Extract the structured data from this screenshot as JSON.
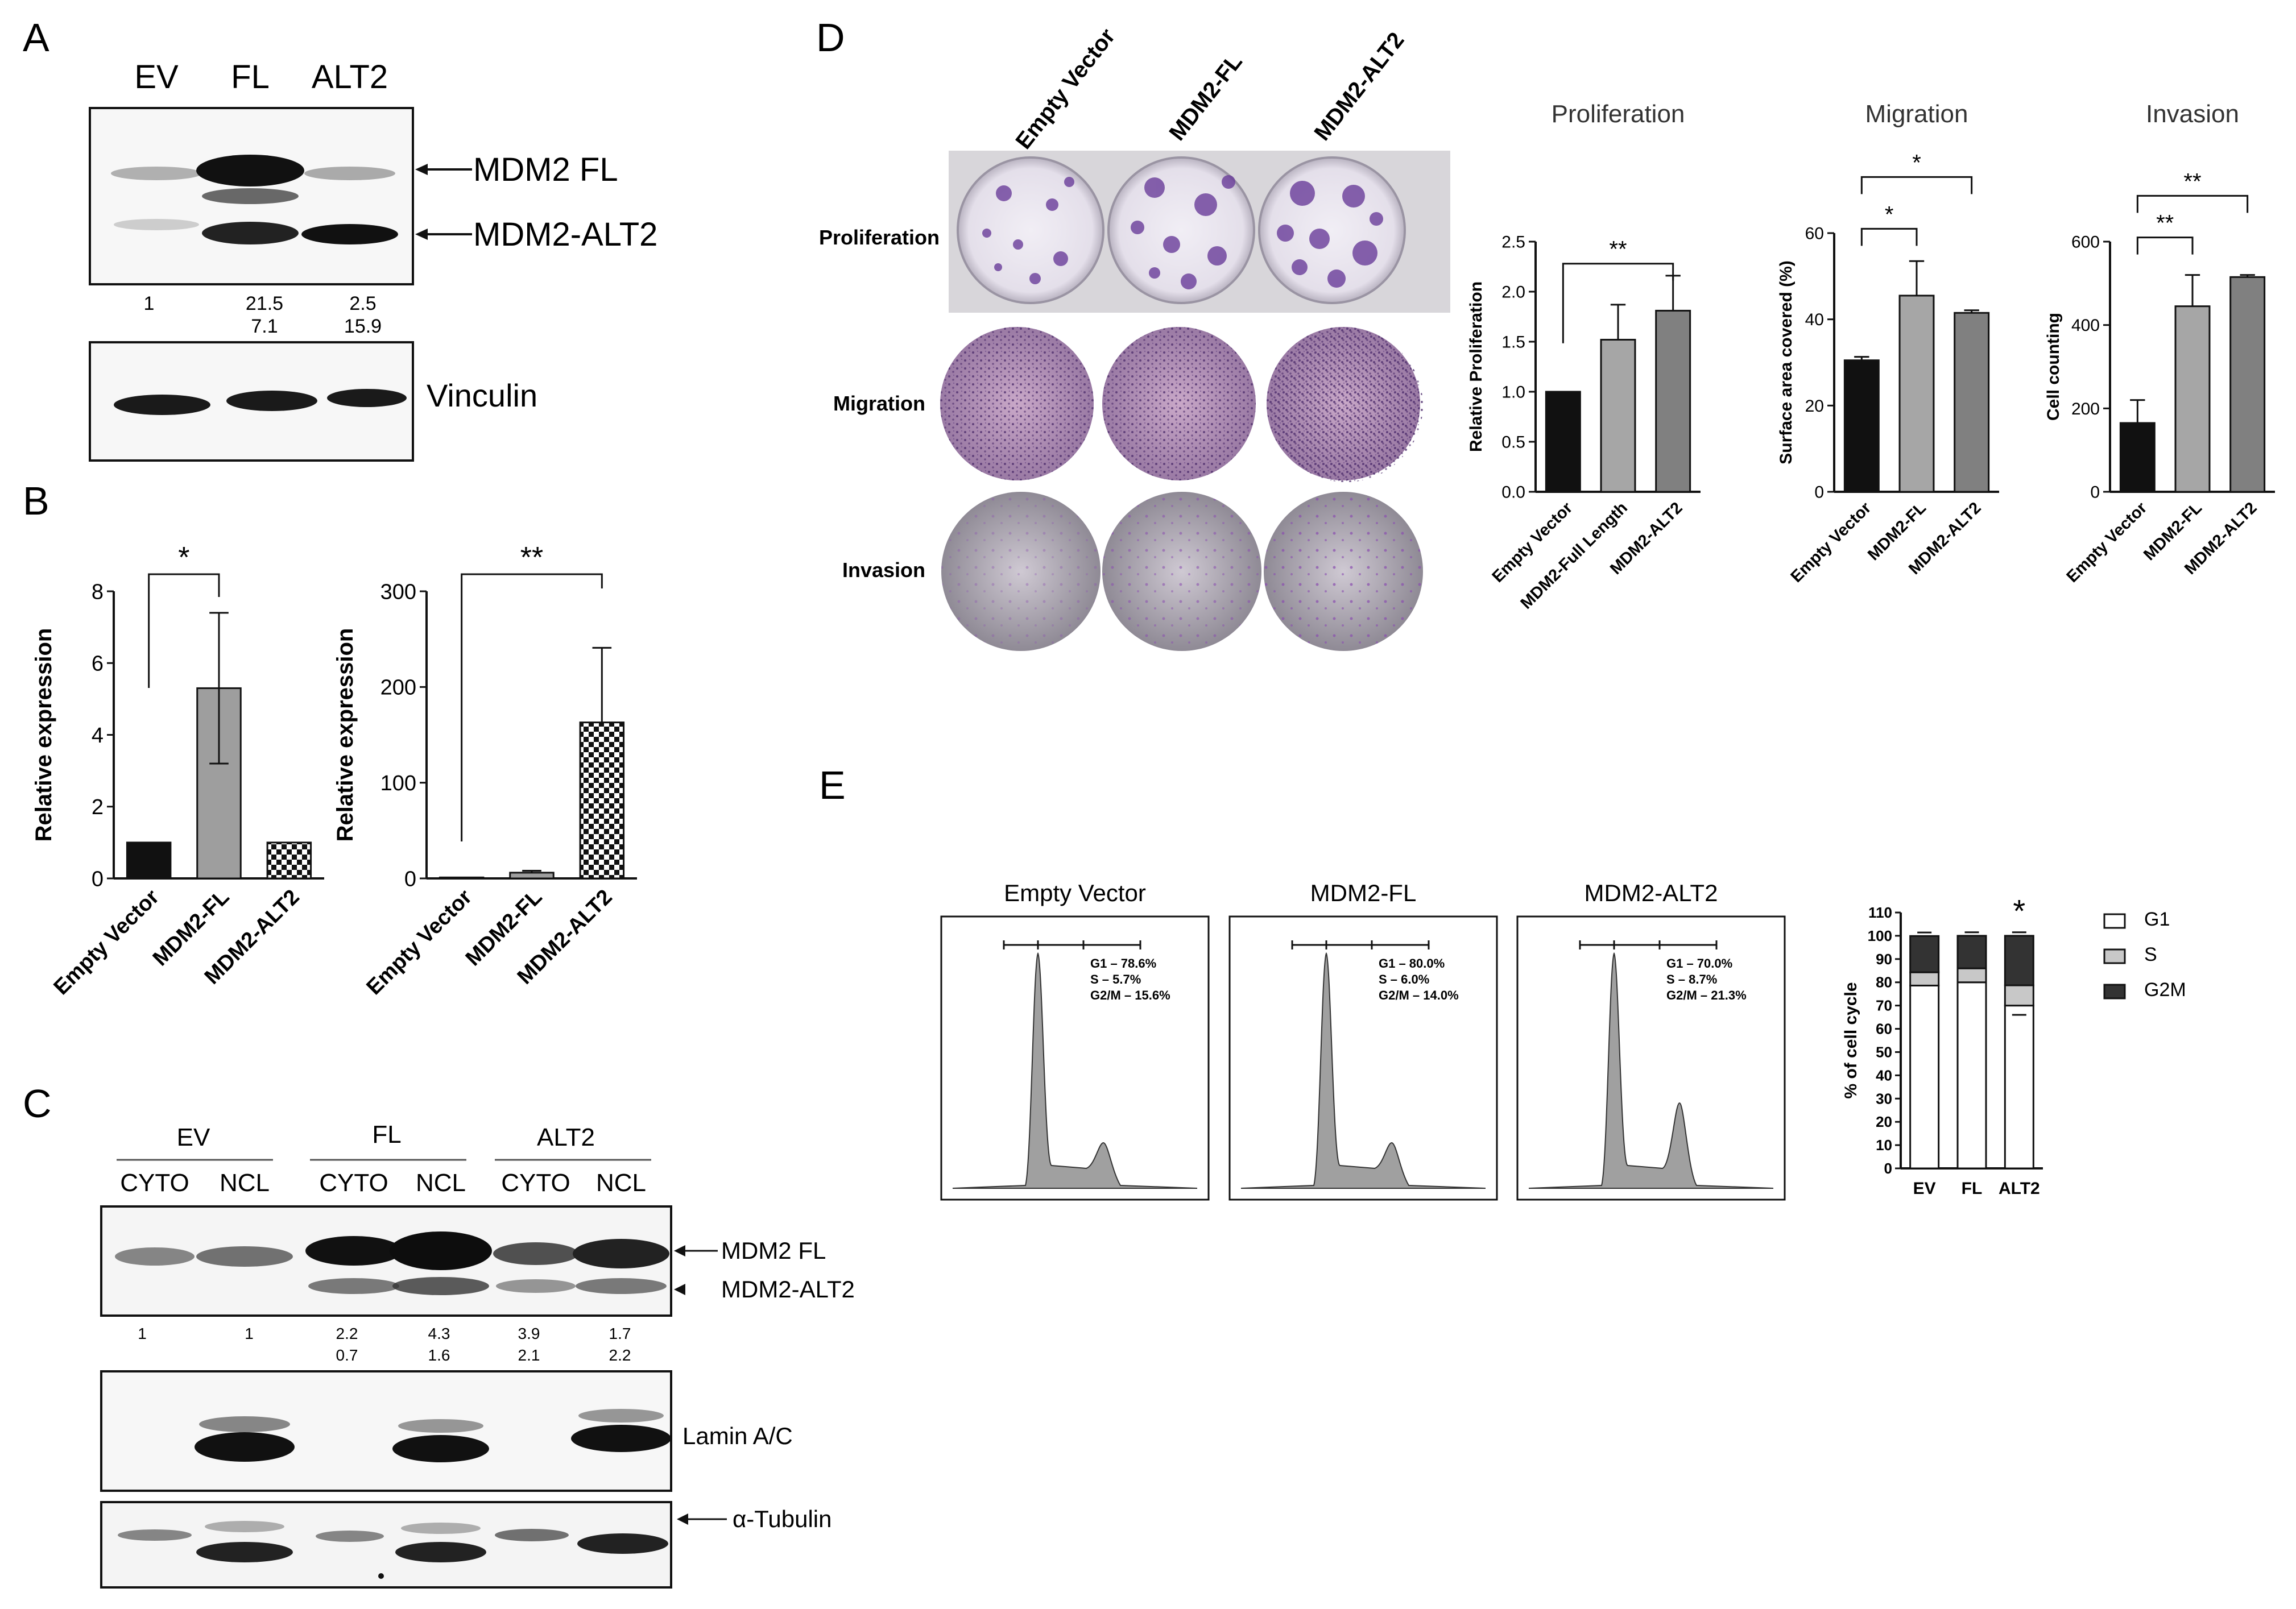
{
  "panels": {
    "a": "A",
    "b": "B",
    "c": "C",
    "d": "D",
    "e": "E"
  },
  "panelA": {
    "lanes": [
      "EV",
      "FL",
      "ALT2"
    ],
    "markers": [
      "MDM2 FL",
      "MDM2-ALT2"
    ],
    "quant_row1": [
      "1",
      "21.5",
      "2.5"
    ],
    "quant_row2": [
      "",
      "7.1",
      "15.9"
    ],
    "loading": "Vinculin"
  },
  "panelB": {
    "charts": [
      {
        "ylabel": "Relative expression",
        "categories": [
          "Empty Vector",
          "MDM2-FL",
          "MDM2-ALT2"
        ],
        "values": [
          1.0,
          5.3,
          1.0
        ],
        "errors": [
          0,
          2.1,
          0
        ],
        "ylim": [
          0,
          8
        ],
        "ticks": [
          0,
          2,
          4,
          6,
          8
        ],
        "patterns": [
          "solid-black",
          "solid-gray",
          "checker"
        ],
        "sig": {
          "from": 0,
          "to": 1,
          "label": "*"
        }
      },
      {
        "ylabel": "Relative expression",
        "categories": [
          "Empty Vector",
          "MDM2-FL",
          "MDM2-ALT2"
        ],
        "values": [
          1,
          6,
          163
        ],
        "errors": [
          0,
          2,
          78
        ],
        "ylim": [
          0,
          300
        ],
        "ticks": [
          0,
          100,
          200,
          300
        ],
        "patterns": [
          "solid-black",
          "solid-gray",
          "checker"
        ],
        "sig": {
          "from": 0,
          "to": 2,
          "label": "**"
        }
      }
    ]
  },
  "panelC": {
    "groups": [
      "EV",
      "FL",
      "ALT2"
    ],
    "fractions": [
      "CYTO",
      "NCL",
      "CYTO",
      "NCL",
      "CYTO",
      "NCL"
    ],
    "markers": [
      "MDM2 FL",
      "MDM2-ALT2"
    ],
    "quant_row1": [
      "1",
      "1",
      "2.2",
      "4.3",
      "3.9",
      "1.7"
    ],
    "quant_row2": [
      "",
      "",
      "0.7",
      "1.6",
      "2.1",
      "2.2"
    ],
    "loading1": "Lamin A/C",
    "loading2": "α-Tubulin"
  },
  "panelD": {
    "columns": [
      "Empty Vector",
      "MDM2-FL",
      "MDM2-ALT2"
    ],
    "rows": [
      "Proliferation",
      "Migration",
      "Invasion"
    ]
  },
  "chart_data": [
    {
      "type": "bar",
      "title": "Proliferation",
      "ylabel": "Relative Proliferation",
      "categories": [
        "Empty Vector",
        "MDM2-Full Length",
        "MDM2-ALT2"
      ],
      "values": [
        1.0,
        1.52,
        1.81
      ],
      "errors": [
        0,
        0.35,
        0.35
      ],
      "ylim": [
        0,
        2.5
      ],
      "ticks": [
        "0.0",
        "0.5",
        "1.0",
        "1.5",
        "2.0",
        "2.5"
      ],
      "sig": [
        {
          "from": 0,
          "to": 2,
          "label": "**",
          "level": 2.28
        }
      ]
    },
    {
      "type": "bar",
      "title": "Migration",
      "ylabel": "Surface area covered (%)",
      "categories": [
        "Empty Vector",
        "MDM2-FL",
        "MDM2-ALT2"
      ],
      "values": [
        30.5,
        45.5,
        41.5
      ],
      "errors": [
        0.8,
        8,
        0.6
      ],
      "ylim": [
        0,
        60
      ],
      "ticks": [
        "0",
        "20",
        "40",
        "60"
      ],
      "sig": [
        {
          "from": 0,
          "to": 1,
          "label": "*",
          "level": 61
        },
        {
          "from": 0,
          "to": 2,
          "label": "*",
          "level": 73
        }
      ]
    },
    {
      "type": "bar",
      "title": "Invasion",
      "ylabel": "Cell counting",
      "categories": [
        "Empty Vector",
        "MDM2-FL",
        "MDM2-ALT2"
      ],
      "values": [
        165,
        445,
        515
      ],
      "errors": [
        55,
        75,
        5
      ],
      "ylim": [
        0,
        600
      ],
      "ticks": [
        "0",
        "200",
        "400",
        "600"
      ],
      "sig": [
        {
          "from": 0,
          "to": 1,
          "label": "**",
          "level": 610
        },
        {
          "from": 0,
          "to": 2,
          "label": "**",
          "level": 710
        }
      ]
    },
    {
      "type": "bar",
      "stacked": true,
      "ylabel": "% of cell cycle",
      "categories": [
        "EV",
        "FL",
        "ALT2"
      ],
      "series": [
        {
          "name": "G1",
          "values": [
            78.6,
            80.0,
            70.0
          ]
        },
        {
          "name": "S",
          "values": [
            5.7,
            6.0,
            8.7
          ]
        },
        {
          "name": "G2M",
          "values": [
            15.6,
            14.0,
            21.3
          ]
        }
      ],
      "ylim": [
        0,
        110
      ],
      "ticks": [
        "0",
        "10",
        "20",
        "30",
        "40",
        "50",
        "60",
        "70",
        "80",
        "90",
        "100",
        "110"
      ],
      "sig_label": "*"
    }
  ],
  "panelE": {
    "histograms": [
      {
        "title": "Empty Vector",
        "g1": "G1 – 78.6%",
        "s": "S – 5.7%",
        "g2m": "G2/M – 15.6%"
      },
      {
        "title": "MDM2-FL",
        "g1": "G1 – 80.0%",
        "s": "S – 6.0%",
        "g2m": "G2/M – 14.0%"
      },
      {
        "title": "MDM2-ALT2",
        "g1": "G1 – 70.0%",
        "s": "S – 8.7%",
        "g2m": "G2/M – 21.3%"
      }
    ]
  },
  "colors": {
    "black": "#111111",
    "gray": "#a6a6a6",
    "darkgray": "#7f7f7f",
    "crystal": "#6a3d9a",
    "histfill": "#999999"
  }
}
